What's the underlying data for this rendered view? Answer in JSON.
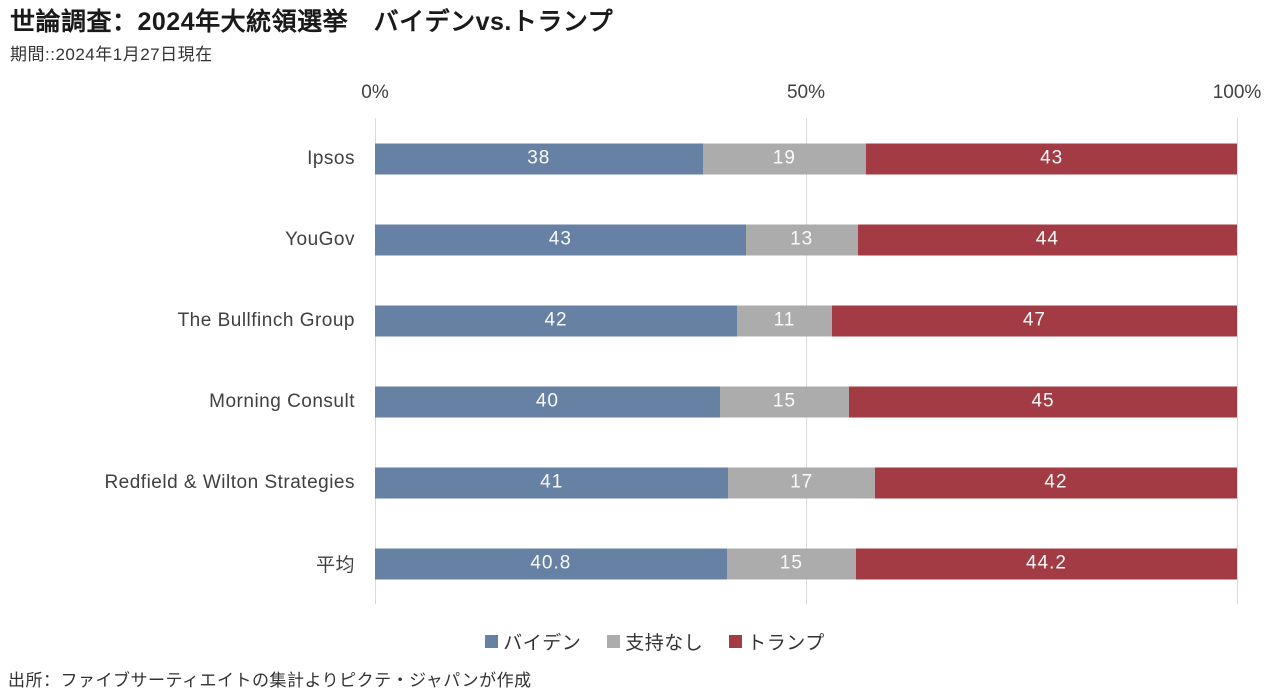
{
  "header": {
    "title": "世論調査：2024年大統領選挙　バイデンvs.トランプ",
    "subtitle": "期間::2024年1月27日現在"
  },
  "footer": {
    "source": "出所：ファイブサーティエイトの集計よりピクテ・ジャパンが作成"
  },
  "colors": {
    "biden": "#6681A3",
    "no_support": "#ACACAC",
    "trump": "#A23B44",
    "gridline": "#D9D9D9",
    "axis_text": "#404040",
    "value_text": "#FAFAFA"
  },
  "chart_data": {
    "type": "bar",
    "orientation": "horizontal-stacked",
    "title": "世論調査：2024年大統領選挙　バイデンvs.トランプ",
    "subtitle": "期間::2024年1月27日現在",
    "categories": [
      "Ipsos",
      "YouGov",
      "The Bullfinch Group",
      "Morning Consult",
      "Redfield & Wilton Strategies",
      "平均"
    ],
    "series": [
      {
        "name": "バイデン",
        "color": "#6681A3",
        "values": [
          38,
          43,
          42,
          40,
          41,
          40.8
        ]
      },
      {
        "name": "支持なし",
        "color": "#ACACAC",
        "values": [
          19,
          13,
          11,
          15,
          17,
          15
        ]
      },
      {
        "name": "トランプ",
        "color": "#A23B44",
        "values": [
          43,
          44,
          47,
          45,
          42,
          44.2
        ]
      }
    ],
    "x_ticks": [
      {
        "label": "0%",
        "pos": 0
      },
      {
        "label": "50%",
        "pos": 50
      },
      {
        "label": "100%",
        "pos": 100
      }
    ],
    "xlim": [
      0,
      100
    ],
    "grid": true,
    "legend_position": "bottom"
  }
}
